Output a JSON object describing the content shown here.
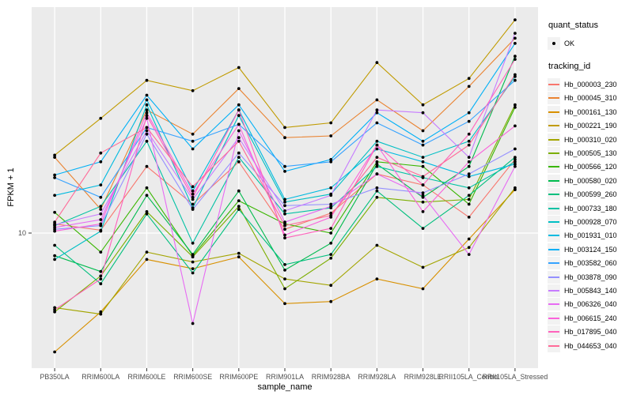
{
  "figure": {
    "background": "#FFFFFF",
    "panel_bg": "#EBEBEB",
    "grid_color": "#FFFFFF",
    "tick_color": "#333333",
    "tick_label_color": "#4D4D4D",
    "point_color": "#000000",
    "legend_key_bg": "#F2F2F2"
  },
  "legend": {
    "quant_title": "quant_status",
    "quant_items": [
      {
        "label": "OK",
        "symbol": "point"
      }
    ],
    "tracking_title": "tracking_id"
  },
  "chart_data": {
    "type": "line",
    "title": "",
    "xlabel": "sample_name",
    "ylabel": "FPKM + 1",
    "log_y": true,
    "ylim": [
      2.4,
      105
    ],
    "y_ticks": [
      {
        "label": "10",
        "value": 10
      }
    ],
    "grid": "vertical-per-category-plus-y10",
    "legend_position": "right",
    "point_shape": "filled-circle",
    "categories": [
      "PB350LA",
      "RRIM600LA",
      "RRIM600LE",
      "RRIM600SE",
      "RRIM600PE",
      "RRIM901LA",
      "RRIM928BA",
      "RRIM928LA",
      "RRIM928LE",
      "RRII105LA_Control",
      "RRII105LA_Stressed"
    ],
    "series": [
      {
        "name": "Hb_000003_230",
        "color": "#F8766D",
        "values": [
          11.0,
          10.3,
          20,
          13.5,
          21,
          10.4,
          12.3,
          18.5,
          16.5,
          11.8,
          21.5
        ]
      },
      {
        "name": "Hb_000045_310",
        "color": "#EA8331",
        "values": [
          22,
          12.8,
          36,
          28,
          45,
          27,
          27.5,
          40,
          29,
          46,
          76
        ]
      },
      {
        "name": "Hb_000161_130",
        "color": "#D89000",
        "values": [
          2.9,
          4.4,
          7.6,
          6.9,
          7.8,
          4.8,
          4.9,
          6.2,
          5.6,
          9.4,
          15.7
        ]
      },
      {
        "name": "Hb_000221_190",
        "color": "#C09B00",
        "values": [
          22.5,
          33,
          49,
          44,
          56,
          30,
          31.5,
          59,
          38,
          50,
          92
        ]
      },
      {
        "name": "Hb_000310_020",
        "color": "#A3A500",
        "values": [
          4.6,
          4.3,
          8.2,
          7.4,
          8.1,
          6.2,
          5.8,
          8.8,
          7.0,
          8.6,
          16
        ]
      },
      {
        "name": "Hb_000505_130",
        "color": "#7CAE00",
        "values": [
          4.4,
          6.4,
          12.5,
          7.8,
          13.2,
          5.6,
          7.7,
          14.5,
          13.8,
          14.2,
          38
        ]
      },
      {
        "name": "Hb_000566_120",
        "color": "#39B600",
        "values": [
          12.4,
          8.2,
          16,
          7.9,
          14,
          11,
          10,
          21,
          20,
          13.5,
          37
        ]
      },
      {
        "name": "Hb_000580_020",
        "color": "#00BB4E",
        "values": [
          7.9,
          6.7,
          14.8,
          8.0,
          15.5,
          6.8,
          9.0,
          20.5,
          14.5,
          20,
          63
        ]
      },
      {
        "name": "Hb_000599_260",
        "color": "#00BF7D",
        "values": [
          8.8,
          5.9,
          12.2,
          6.6,
          12.8,
          7.2,
          8.0,
          15.5,
          10.5,
          14.8,
          22
        ]
      },
      {
        "name": "Hb_000733_180",
        "color": "#00C1A3",
        "values": [
          10.8,
          13.2,
          26,
          9.0,
          22,
          12.2,
          13.0,
          20,
          17.8,
          16,
          21
        ]
      },
      {
        "name": "Hb_000928_070",
        "color": "#00BFC4",
        "values": [
          7.6,
          10.2,
          38,
          13,
          34,
          13.8,
          15,
          26,
          22,
          26,
          51
        ]
      },
      {
        "name": "Hb_001931_010",
        "color": "#00BAE0",
        "values": [
          14.8,
          16.5,
          40,
          15.5,
          36,
          14.2,
          16,
          24,
          21,
          18,
          20.5
        ]
      },
      {
        "name": "Hb_003124_150",
        "color": "#00B0F6",
        "values": [
          18.3,
          21,
          42,
          24,
          38,
          19,
          21.5,
          35,
          26,
          35,
          72
        ]
      },
      {
        "name": "Hb_003582_060",
        "color": "#35A2FF",
        "values": [
          17.8,
          14.5,
          30,
          26,
          31,
          20,
          21,
          31.5,
          25,
          32,
          49
        ]
      },
      {
        "name": "Hb_003878_090",
        "color": "#9590FF",
        "values": [
          10.4,
          10.8,
          28,
          12.8,
          23,
          13.3,
          13.5,
          16,
          15.2,
          18.5,
          24
        ]
      },
      {
        "name": "Hb_005843_140",
        "color": "#C77CFF",
        "values": [
          10.9,
          12.2,
          29,
          14.2,
          27,
          12.6,
          14.8,
          36,
          35,
          22,
          80
        ]
      },
      {
        "name": "Hb_006326_040",
        "color": "#E76BF3",
        "values": [
          10.6,
          11.5,
          33,
          3.9,
          29,
          11.2,
          13.2,
          18.5,
          14.8,
          8.0,
          20
        ]
      },
      {
        "name": "Hb_006615_240",
        "color": "#FA62DB",
        "values": [
          10.2,
          11.0,
          35,
          15,
          31,
          9.8,
          11.8,
          25,
          12.5,
          21,
          30.5
        ]
      },
      {
        "name": "Hb_017895_040",
        "color": "#FF62BC",
        "values": [
          4.5,
          6.2,
          34,
          14.5,
          36,
          9.5,
          10.5,
          25,
          16.5,
          28,
          61
        ]
      },
      {
        "name": "Hb_044653_040",
        "color": "#FF6A98",
        "values": [
          11.2,
          23,
          30,
          16.2,
          26,
          10.8,
          12.0,
          22,
          18,
          25,
          52
        ]
      }
    ]
  }
}
